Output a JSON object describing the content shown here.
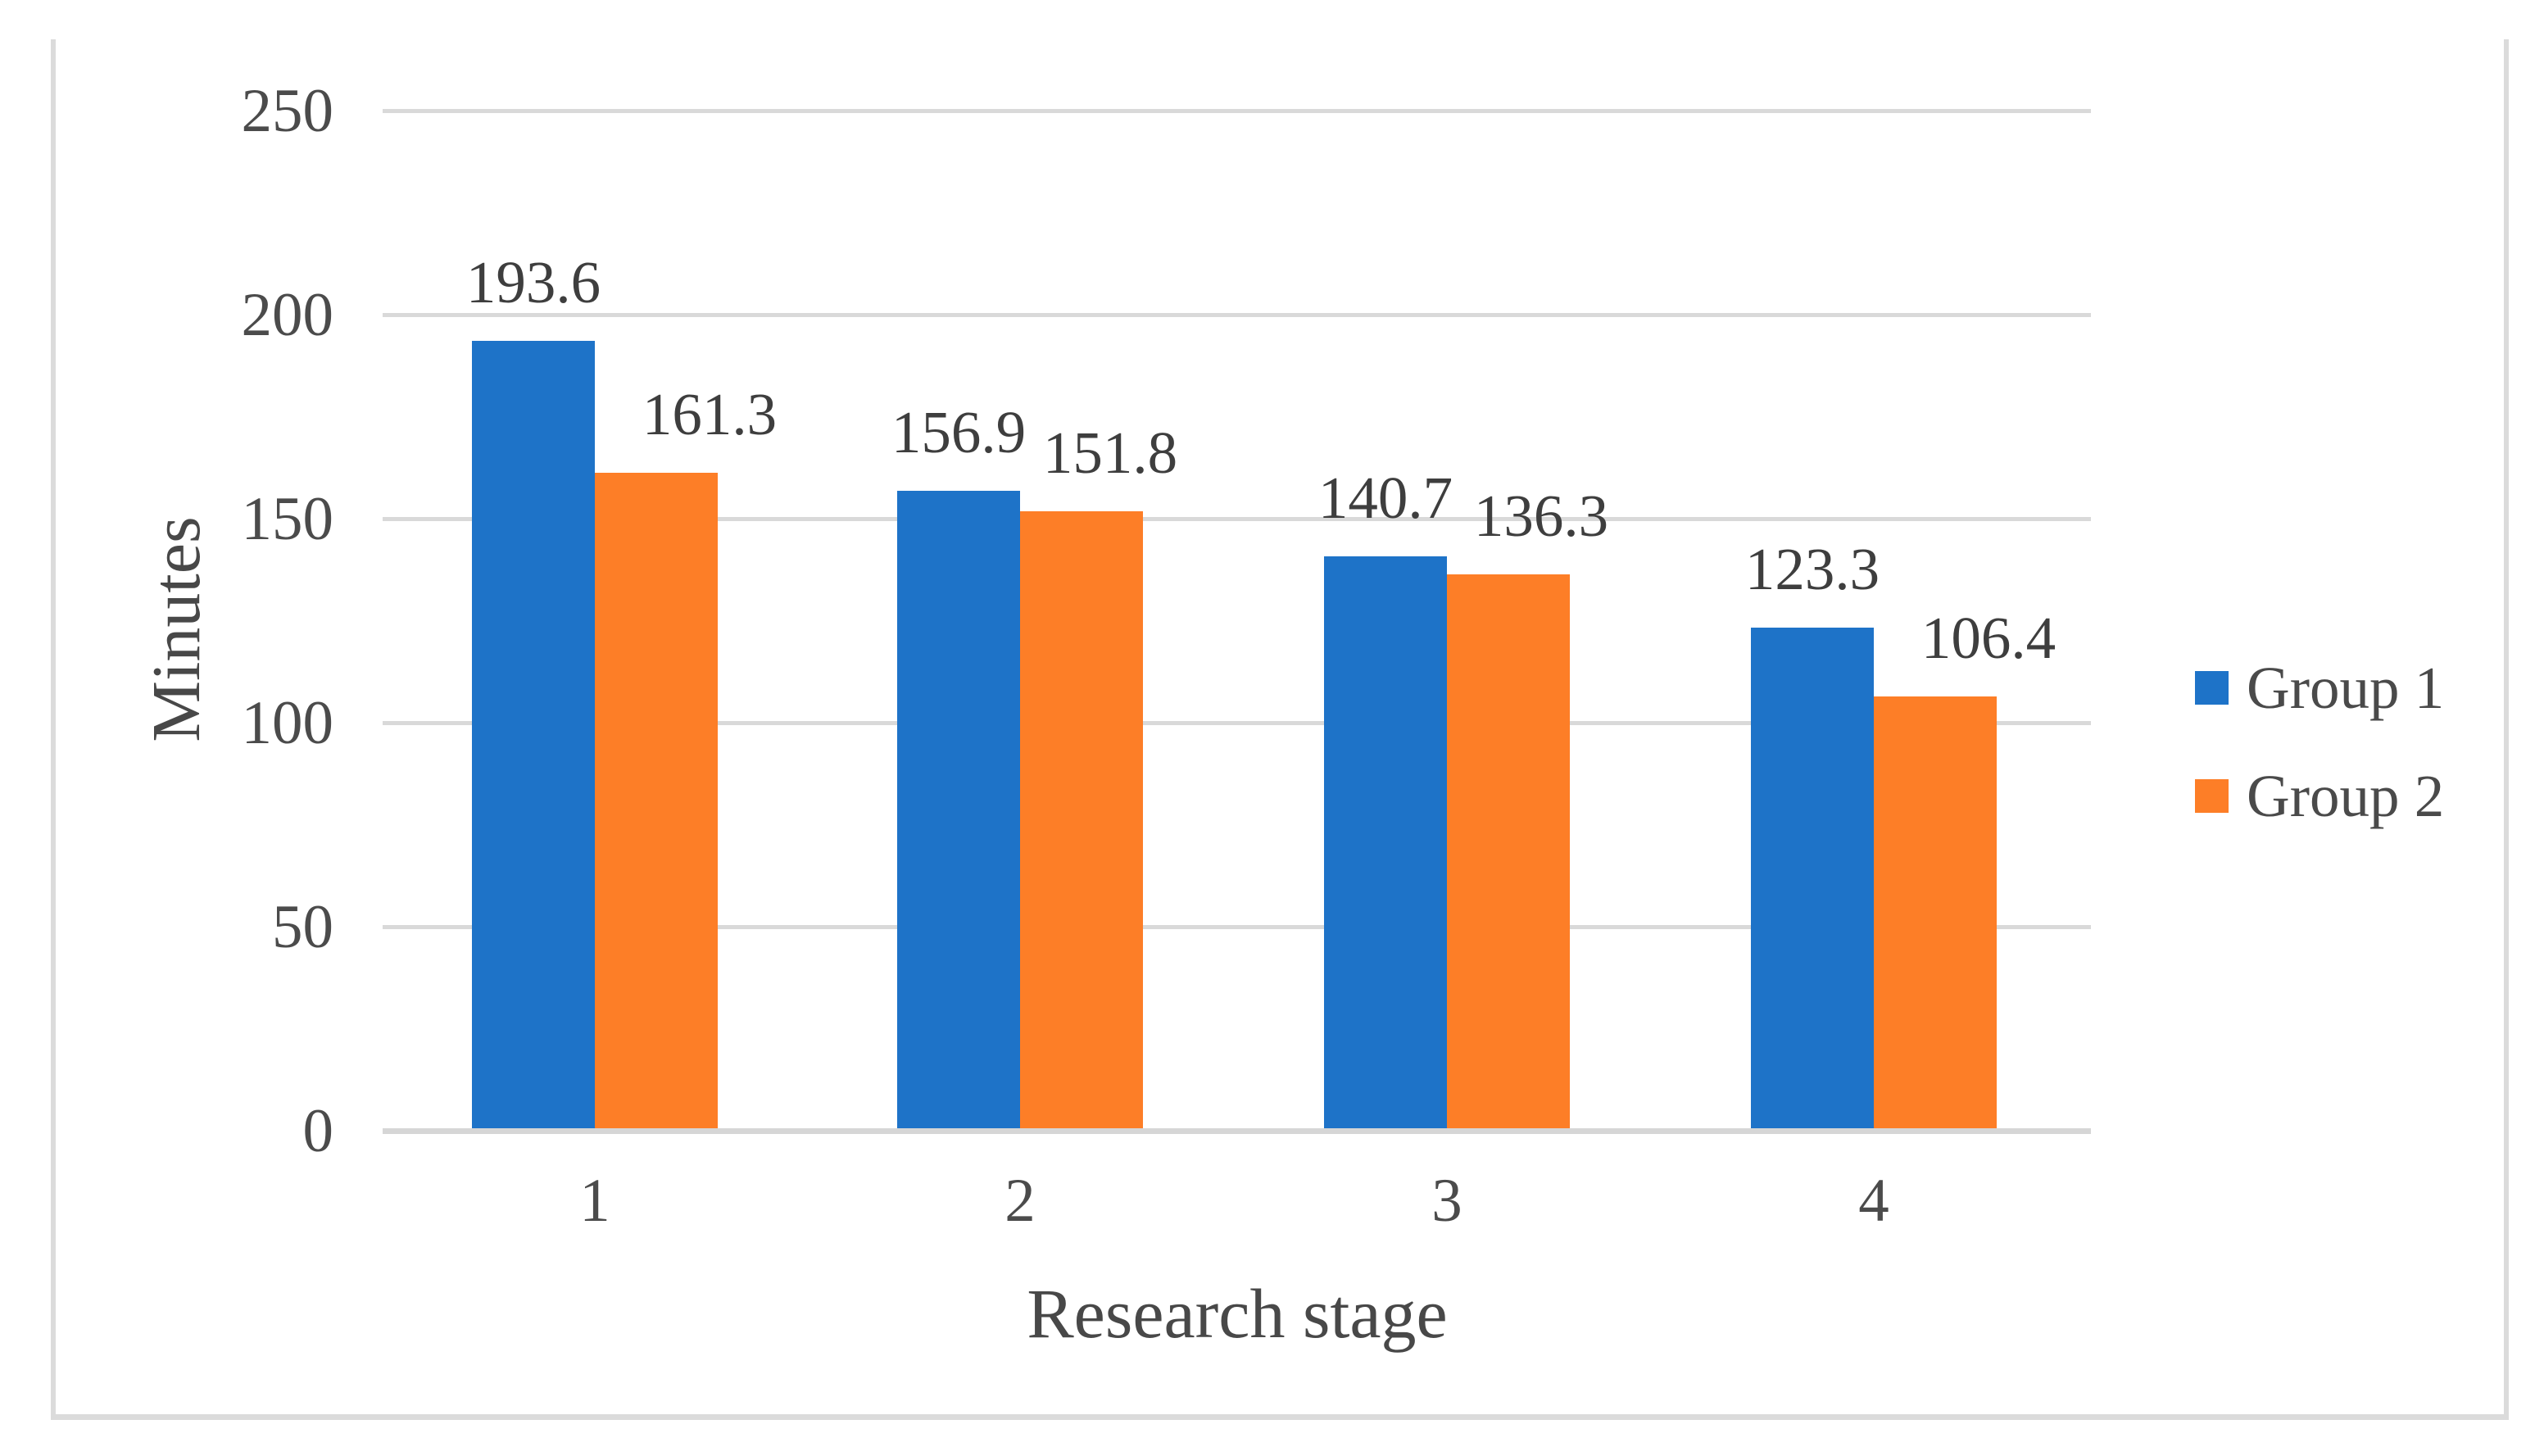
{
  "chart_data": {
    "type": "bar",
    "title": "",
    "xlabel": "Research stage",
    "ylabel": "Minutes",
    "categories": [
      "1",
      "2",
      "3",
      "4"
    ],
    "series": [
      {
        "name": "Group 1",
        "color": "#1e73c8",
        "values": [
          193.6,
          156.9,
          140.7,
          123.3
        ],
        "labels": [
          "193.6",
          "156.9",
          "140.7",
          "123.3"
        ]
      },
      {
        "name": "Group 2",
        "color": "#fd7e27",
        "values": [
          161.3,
          151.8,
          136.3,
          106.4
        ],
        "labels": [
          "161.3",
          "151.8",
          "136.3",
          "106.4"
        ]
      }
    ],
    "ylim": [
      0,
      250
    ],
    "ytick_step": 50,
    "yticks": [
      "0",
      "50",
      "100",
      "150",
      "200",
      "250"
    ],
    "grid": "horizontal",
    "legend_position": "right"
  },
  "styles": {
    "gridline_color": "#d9d9d9",
    "baseline_color": "#d6d6d6",
    "frame_border_color": "#dbdbdb",
    "tick_text_color": "#4b4b4b",
    "axis_title_color": "#484848",
    "data_label_color": "#3e3e3e",
    "legend_text_color": "#4a4a4a",
    "background_color": "#ffffff"
  }
}
